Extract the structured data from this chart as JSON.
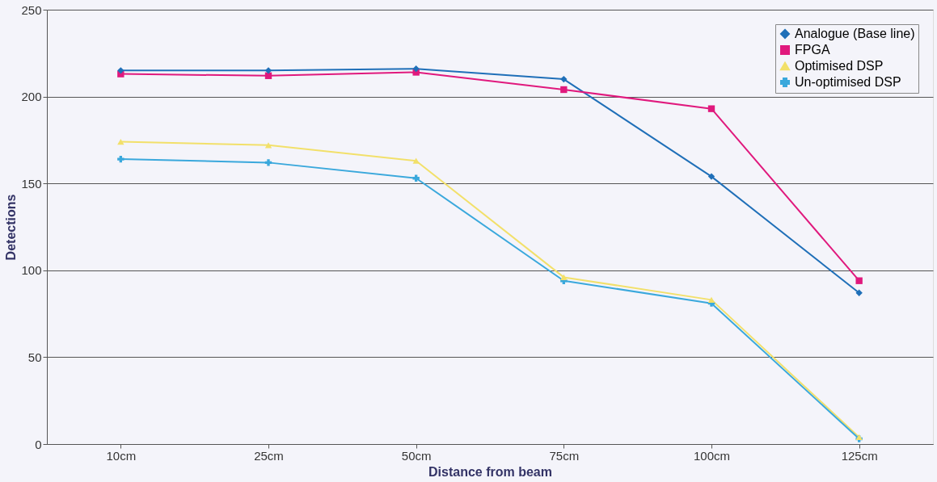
{
  "chart_data": {
    "type": "line",
    "xlabel": "Distance from beam",
    "ylabel": "Detections",
    "categories": [
      "10cm",
      "25cm",
      "50cm",
      "75cm",
      "100cm",
      "125cm"
    ],
    "series": [
      {
        "name": "Analogue (Base line)",
        "color": "#1f6fb8",
        "marker": "diamond",
        "values": [
          215,
          215,
          216,
          210,
          154,
          87
        ]
      },
      {
        "name": "FPGA",
        "color": "#e0197d",
        "marker": "square",
        "values": [
          213,
          212,
          214,
          204,
          193,
          94
        ]
      },
      {
        "name": "Optimised DSP",
        "color": "#f2e06a",
        "marker": "triangle",
        "values": [
          174,
          172,
          163,
          96,
          83,
          4
        ]
      },
      {
        "name": "Un-optimised DSP",
        "color": "#3aa8dc",
        "marker": "cross",
        "values": [
          164,
          162,
          153,
          94,
          81,
          3
        ]
      }
    ],
    "ylim": [
      0,
      250
    ],
    "yticks": [
      0,
      50,
      100,
      150,
      200,
      250
    ],
    "grid": "y",
    "legend": "top right",
    "line_style": "solid"
  }
}
